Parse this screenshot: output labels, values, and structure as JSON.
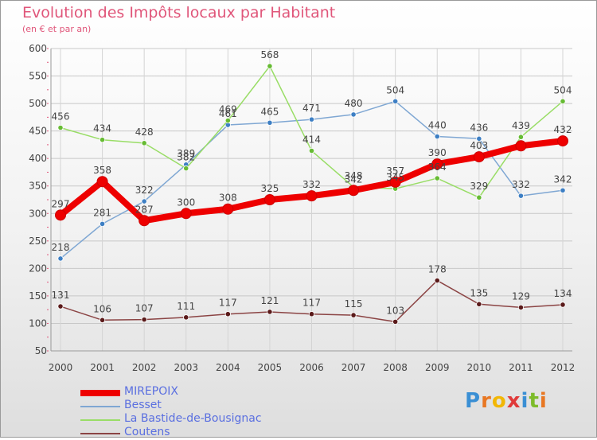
{
  "header": {
    "title": "Evolution des Impôts locaux par Habitant",
    "subtitle": "(en € et par an)"
  },
  "logo": {
    "letters": [
      "P",
      "r",
      "o",
      "x",
      "i",
      "t",
      "i"
    ],
    "colors": [
      "#3a8fd4",
      "#e87722",
      "#f2b705",
      "#e03a3a",
      "#3a8fd4",
      "#7dbb2a",
      "#e87722"
    ]
  },
  "chart_data": {
    "type": "line",
    "title": "Evolution des Impôts locaux par Habitant",
    "subtitle": "(en € et par an)",
    "x": [
      "2000",
      "2001",
      "2002",
      "2003",
      "2004",
      "2005",
      "2006",
      "2007",
      "2008",
      "2009",
      "2010",
      "2011",
      "2012"
    ],
    "ylim": [
      50,
      600
    ],
    "yticks": [
      50,
      100,
      150,
      200,
      250,
      300,
      350,
      400,
      450,
      500,
      550,
      600
    ],
    "grid": true,
    "legend_position": "bottom-left",
    "series": [
      {
        "name": "MIREPOIX",
        "color": "#ee0000",
        "marker": "#ee0000",
        "bold": true,
        "values": [
          297,
          358,
          287,
          300,
          308,
          325,
          332,
          342,
          357,
          390,
          403,
          423,
          432
        ],
        "labels": [
          "297",
          "358",
          "287",
          "300",
          "308",
          "325",
          "332",
          "342",
          "357",
          "390",
          "403",
          "",
          "432"
        ]
      },
      {
        "name": "Besset",
        "color": "#7fa7d3",
        "marker": "#3d7fc4",
        "bold": false,
        "values": [
          218,
          281,
          322,
          389,
          461,
          465,
          471,
          480,
          504,
          440,
          436,
          332,
          342
        ],
        "labels": [
          "218",
          "281",
          "322",
          "389",
          "461",
          "465",
          "471",
          "480",
          "504",
          "440",
          "436",
          "332",
          "342"
        ]
      },
      {
        "name": "La Bastide-de-Bousignac",
        "color": "#99dd66",
        "marker": "#66bb33",
        "bold": false,
        "values": [
          456,
          434,
          428,
          382,
          469,
          568,
          414,
          348,
          345,
          364,
          329,
          439,
          504
        ],
        "labels": [
          "456",
          "434",
          "428",
          "382",
          "469",
          "568",
          "414",
          "348",
          "345",
          "364",
          "329",
          "439",
          "504"
        ]
      },
      {
        "name": "Coutens",
        "color": "#8b4444",
        "marker": "#5a1a1a",
        "bold": false,
        "values": [
          131,
          106,
          107,
          111,
          117,
          121,
          117,
          115,
          103,
          178,
          135,
          129,
          134
        ],
        "labels": [
          "131",
          "106",
          "107",
          "111",
          "117",
          "121",
          "117",
          "115",
          "103",
          "178",
          "135",
          "129",
          "134"
        ]
      }
    ]
  }
}
